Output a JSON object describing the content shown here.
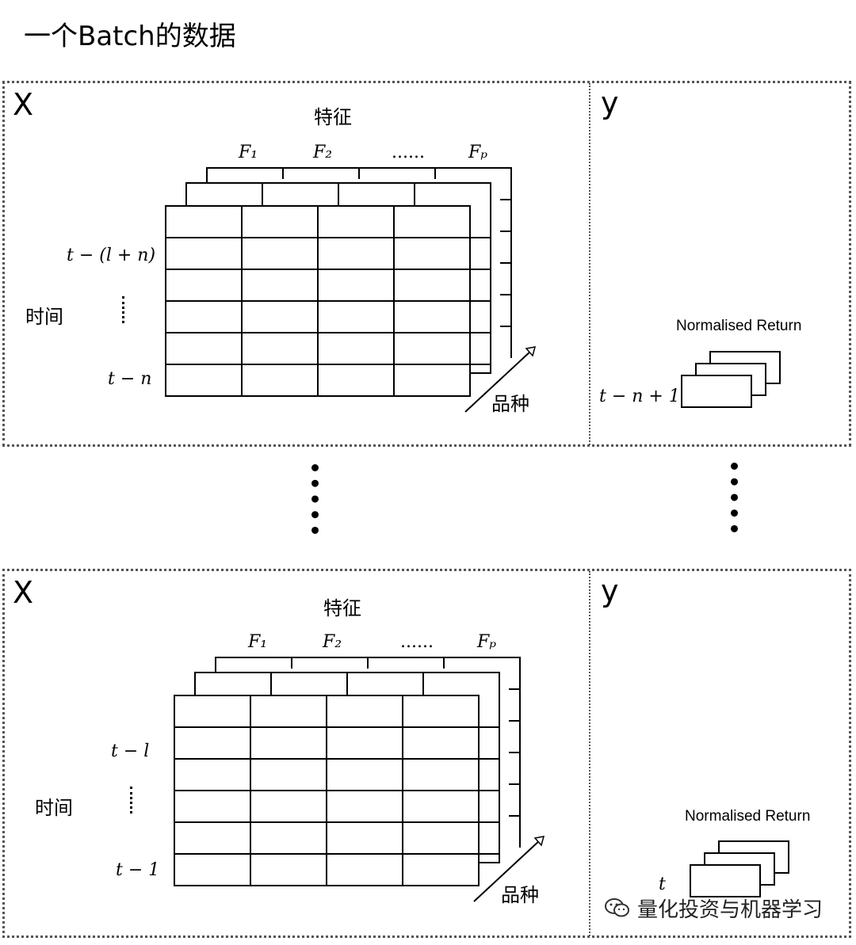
{
  "title": "一个Batch的数据",
  "batches": [
    {
      "x_label": "X",
      "y_label": "y",
      "feature_label": "特征",
      "feature_cols": [
        "F₁",
        "F₂",
        "......",
        "Fₚ"
      ],
      "time_label": "时间",
      "row_label_top": "t − (l + n)",
      "row_label_bottom": "t − n",
      "asset_label": "品种",
      "y_title": "Normalised Return",
      "y_time": "t − n + 1"
    },
    {
      "x_label": "X",
      "y_label": "y",
      "feature_label": "特征",
      "feature_cols": [
        "F₁",
        "F₂",
        "......",
        "Fₚ"
      ],
      "time_label": "时间",
      "row_label_top": "t − l",
      "row_label_bottom": "t − 1",
      "asset_label": "品种",
      "y_title": "Normalised Return",
      "y_time": "t"
    }
  ],
  "watermark": "量化投资与机器学习",
  "watermark_icon": "wechat-icon"
}
